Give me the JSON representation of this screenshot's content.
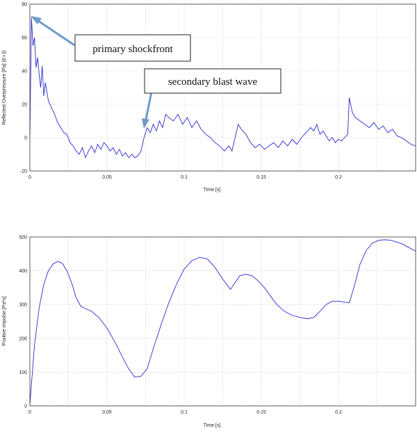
{
  "chart_data": [
    {
      "type": "line",
      "xlabel": "Time [s]",
      "ylabel": "Reflected Overpressure [Pa] (E+3)",
      "xlim": [
        0,
        0.25
      ],
      "ylim": [
        -20,
        80
      ],
      "xticks": [
        0,
        0.05,
        0.1,
        0.15,
        0.2
      ],
      "xtick_labels": [
        "0",
        "0.05",
        "0.1",
        "0.15",
        "0.2"
      ],
      "yticks": [
        -20,
        0,
        20,
        40,
        60,
        80
      ],
      "ytick_labels": [
        "-20",
        "0",
        "20",
        "40",
        "60",
        "80"
      ],
      "grid": true,
      "color": "#2a2ad0",
      "series": [
        {
          "x": [
            0,
            0.001,
            0.002,
            0.003,
            0.004,
            0.005,
            0.006,
            0.007,
            0.008,
            0.009,
            0.01,
            0.012,
            0.014,
            0.016,
            0.018,
            0.02,
            0.022,
            0.024,
            0.026,
            0.028,
            0.03,
            0.032,
            0.034,
            0.036,
            0.038,
            0.04,
            0.042,
            0.044,
            0.046,
            0.048,
            0.05,
            0.052,
            0.054,
            0.056,
            0.058,
            0.06,
            0.062,
            0.064,
            0.066,
            0.068,
            0.07,
            0.072,
            0.074,
            0.076,
            0.078,
            0.08,
            0.082,
            0.084,
            0.086,
            0.088,
            0.09,
            0.093,
            0.096,
            0.099,
            0.102,
            0.105,
            0.108,
            0.111,
            0.114,
            0.117,
            0.12,
            0.123,
            0.126,
            0.129,
            0.131,
            0.133,
            0.135,
            0.137,
            0.14,
            0.143,
            0.146,
            0.149,
            0.152,
            0.155,
            0.158,
            0.161,
            0.164,
            0.167,
            0.17,
            0.173,
            0.176,
            0.179,
            0.182,
            0.184,
            0.186,
            0.188,
            0.19,
            0.192,
            0.194,
            0.196,
            0.198,
            0.2,
            0.202,
            0.204,
            0.206,
            0.207,
            0.209,
            0.211,
            0.214,
            0.217,
            0.22,
            0.223,
            0.226,
            0.229,
            0.232,
            0.235,
            0.238,
            0.241,
            0.244,
            0.247,
            0.25
          ],
          "y": [
            0,
            72,
            55,
            60,
            42,
            48,
            38,
            30,
            43,
            25,
            33,
            22,
            18,
            14,
            9,
            6,
            3,
            2,
            -3,
            -5,
            -8,
            -10,
            -6,
            -12,
            -8,
            -5,
            -9,
            -4,
            -7,
            -3,
            -5,
            -8,
            -6,
            -10,
            -7,
            -11,
            -9,
            -12,
            -10,
            -12,
            -11,
            -8,
            0,
            6,
            3,
            8,
            4,
            10,
            6,
            14,
            12,
            10,
            14,
            8,
            12,
            6,
            10,
            5,
            2,
            0,
            -3,
            -5,
            -8,
            -5,
            -8,
            0,
            8,
            5,
            2,
            -3,
            -6,
            -4,
            -7,
            -5,
            -3,
            -6,
            -2,
            -5,
            -1,
            -4,
            0,
            3,
            6,
            4,
            8,
            2,
            4,
            1,
            -2,
            0,
            -3,
            -1,
            -2,
            0,
            2,
            24,
            15,
            12,
            10,
            8,
            6,
            9,
            5,
            7,
            3,
            5,
            1,
            0,
            -2,
            -4,
            -5
          ]
        }
      ]
    },
    {
      "type": "line",
      "xlabel": "Time [s]",
      "ylabel": "Positive impulse [Pa*s]",
      "xlim": [
        0,
        0.25
      ],
      "ylim": [
        0,
        500
      ],
      "xticks": [
        0,
        0.05,
        0.1,
        0.15,
        0.2
      ],
      "xtick_labels": [
        "0",
        "0.05",
        "0.1",
        "0.15",
        "0.2"
      ],
      "yticks": [
        0,
        100,
        200,
        300,
        400,
        500
      ],
      "ytick_labels": [
        "0",
        "100",
        "200",
        "300",
        "400",
        "500"
      ],
      "grid": true,
      "color": "#2a2ad0",
      "series": [
        {
          "x": [
            0,
            0.003,
            0.006,
            0.009,
            0.012,
            0.015,
            0.018,
            0.021,
            0.024,
            0.027,
            0.03,
            0.033,
            0.036,
            0.04,
            0.045,
            0.05,
            0.055,
            0.06,
            0.064,
            0.068,
            0.072,
            0.076,
            0.08,
            0.085,
            0.09,
            0.095,
            0.1,
            0.105,
            0.11,
            0.115,
            0.12,
            0.125,
            0.13,
            0.133,
            0.136,
            0.14,
            0.144,
            0.148,
            0.152,
            0.156,
            0.16,
            0.165,
            0.17,
            0.175,
            0.18,
            0.184,
            0.188,
            0.192,
            0.196,
            0.2,
            0.204,
            0.207,
            0.21,
            0.214,
            0.218,
            0.222,
            0.226,
            0.23,
            0.234,
            0.238,
            0.242,
            0.246,
            0.25
          ],
          "y": [
            5,
            180,
            290,
            360,
            400,
            420,
            428,
            422,
            400,
            365,
            320,
            295,
            288,
            280,
            260,
            230,
            190,
            145,
            110,
            85,
            88,
            110,
            170,
            240,
            305,
            360,
            405,
            430,
            440,
            435,
            410,
            375,
            345,
            365,
            385,
            390,
            385,
            370,
            350,
            325,
            300,
            280,
            268,
            262,
            258,
            262,
            280,
            300,
            310,
            310,
            307,
            305,
            350,
            420,
            460,
            482,
            490,
            492,
            490,
            485,
            478,
            468,
            458
          ]
        }
      ]
    }
  ],
  "annotations": {
    "primary": "primary shockfront",
    "secondary": "secondary blast wave"
  }
}
